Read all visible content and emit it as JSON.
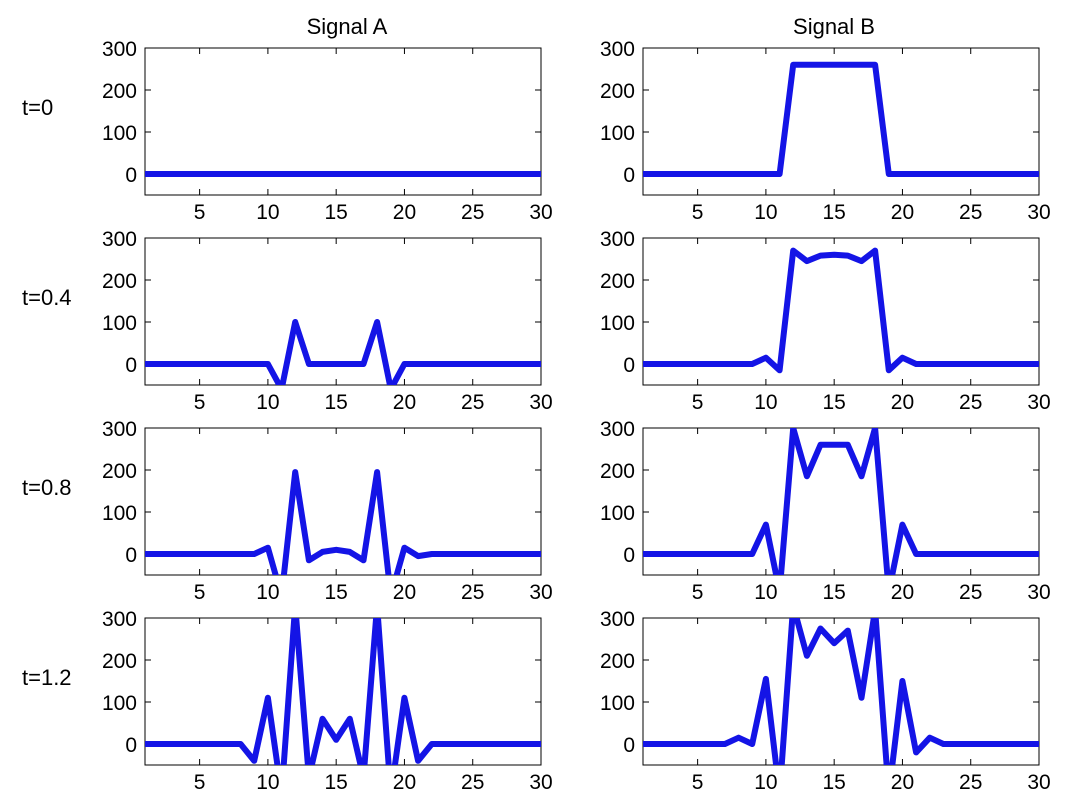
{
  "columns": [
    "Signal A",
    "Signal B"
  ],
  "rows": [
    "t=0",
    "t=0.4",
    "t=0.8",
    "t=1.2"
  ],
  "style": {
    "line_color": "#1414e6"
  },
  "chart_data": [
    {
      "type": "line",
      "row": "t=0",
      "column": "Signal A",
      "xlim": [
        1,
        30
      ],
      "ylim": [
        -50,
        300
      ],
      "xticks": [
        5,
        10,
        15,
        20,
        25,
        30
      ],
      "yticks": [
        0,
        100,
        200,
        300
      ],
      "x": [
        1,
        2,
        3,
        4,
        5,
        6,
        7,
        8,
        9,
        10,
        11,
        12,
        13,
        14,
        15,
        16,
        17,
        18,
        19,
        20,
        21,
        22,
        23,
        24,
        25,
        26,
        27,
        28,
        29,
        30
      ],
      "y": [
        0,
        0,
        0,
        0,
        0,
        0,
        0,
        0,
        0,
        0,
        0,
        0,
        0,
        0,
        0,
        0,
        0,
        0,
        0,
        0,
        0,
        0,
        0,
        0,
        0,
        0,
        0,
        0,
        0,
        0
      ]
    },
    {
      "type": "line",
      "row": "t=0",
      "column": "Signal B",
      "xlim": [
        1,
        30
      ],
      "ylim": [
        -50,
        300
      ],
      "xticks": [
        5,
        10,
        15,
        20,
        25,
        30
      ],
      "yticks": [
        0,
        100,
        200,
        300
      ],
      "x": [
        1,
        2,
        3,
        4,
        5,
        6,
        7,
        8,
        9,
        10,
        11,
        12,
        13,
        14,
        15,
        16,
        17,
        18,
        19,
        20,
        21,
        22,
        23,
        24,
        25,
        26,
        27,
        28,
        29,
        30
      ],
      "y": [
        0,
        0,
        0,
        0,
        0,
        0,
        0,
        0,
        0,
        0,
        0,
        260,
        260,
        260,
        260,
        260,
        260,
        260,
        0,
        0,
        0,
        0,
        0,
        0,
        0,
        0,
        0,
        0,
        0,
        0
      ]
    },
    {
      "type": "line",
      "row": "t=0.4",
      "column": "Signal A",
      "xlim": [
        1,
        30
      ],
      "ylim": [
        -50,
        300
      ],
      "xticks": [
        5,
        10,
        15,
        20,
        25,
        30
      ],
      "yticks": [
        0,
        100,
        200,
        300
      ],
      "x": [
        1,
        2,
        3,
        4,
        5,
        6,
        7,
        8,
        9,
        10,
        11,
        12,
        13,
        14,
        15,
        16,
        17,
        18,
        19,
        20,
        21,
        22,
        23,
        24,
        25,
        26,
        27,
        28,
        29,
        30
      ],
      "y": [
        0,
        0,
        0,
        0,
        0,
        0,
        0,
        0,
        0,
        0,
        -60,
        100,
        0,
        0,
        0,
        0,
        0,
        100,
        -60,
        0,
        0,
        0,
        0,
        0,
        0,
        0,
        0,
        0,
        0,
        0
      ]
    },
    {
      "type": "line",
      "row": "t=0.4",
      "column": "Signal B",
      "xlim": [
        1,
        30
      ],
      "ylim": [
        -50,
        300
      ],
      "xticks": [
        5,
        10,
        15,
        20,
        25,
        30
      ],
      "yticks": [
        0,
        100,
        200,
        300
      ],
      "x": [
        1,
        2,
        3,
        4,
        5,
        6,
        7,
        8,
        9,
        10,
        11,
        12,
        13,
        14,
        15,
        16,
        17,
        18,
        19,
        20,
        21,
        22,
        23,
        24,
        25,
        26,
        27,
        28,
        29,
        30
      ],
      "y": [
        0,
        0,
        0,
        0,
        0,
        0,
        0,
        0,
        0,
        15,
        -15,
        270,
        245,
        258,
        260,
        258,
        245,
        270,
        -15,
        15,
        0,
        0,
        0,
        0,
        0,
        0,
        0,
        0,
        0,
        0
      ]
    },
    {
      "type": "line",
      "row": "t=0.8",
      "column": "Signal A",
      "xlim": [
        1,
        30
      ],
      "ylim": [
        -50,
        300
      ],
      "xticks": [
        5,
        10,
        15,
        20,
        25,
        30
      ],
      "yticks": [
        0,
        100,
        200,
        300
      ],
      "x": [
        1,
        2,
        3,
        4,
        5,
        6,
        7,
        8,
        9,
        10,
        11,
        12,
        13,
        14,
        15,
        16,
        17,
        18,
        19,
        20,
        21,
        22,
        23,
        24,
        25,
        26,
        27,
        28,
        29,
        30
      ],
      "y": [
        0,
        0,
        0,
        0,
        0,
        0,
        0,
        0,
        0,
        15,
        -100,
        195,
        -15,
        5,
        10,
        5,
        -15,
        195,
        -100,
        15,
        -5,
        0,
        0,
        0,
        0,
        0,
        0,
        0,
        0,
        0
      ]
    },
    {
      "type": "line",
      "row": "t=0.8",
      "column": "Signal B",
      "xlim": [
        1,
        30
      ],
      "ylim": [
        -50,
        300
      ],
      "xticks": [
        5,
        10,
        15,
        20,
        25,
        30
      ],
      "yticks": [
        0,
        100,
        200,
        300
      ],
      "x": [
        1,
        2,
        3,
        4,
        5,
        6,
        7,
        8,
        9,
        10,
        11,
        12,
        13,
        14,
        15,
        16,
        17,
        18,
        19,
        20,
        21,
        22,
        23,
        24,
        25,
        26,
        27,
        28,
        29,
        30
      ],
      "y": [
        0,
        0,
        0,
        0,
        0,
        0,
        0,
        0,
        0,
        70,
        -90,
        300,
        185,
        260,
        260,
        260,
        185,
        300,
        -90,
        70,
        0,
        0,
        0,
        0,
        0,
        0,
        0,
        0,
        0,
        0
      ]
    },
    {
      "type": "line",
      "row": "t=1.2",
      "column": "Signal A",
      "xlim": [
        1,
        30
      ],
      "ylim": [
        -50,
        300
      ],
      "xticks": [
        5,
        10,
        15,
        20,
        25,
        30
      ],
      "yticks": [
        0,
        100,
        200,
        300
      ],
      "x": [
        1,
        2,
        3,
        4,
        5,
        6,
        7,
        8,
        9,
        10,
        11,
        12,
        13,
        14,
        15,
        16,
        17,
        18,
        19,
        20,
        21,
        22,
        23,
        24,
        25,
        26,
        27,
        28,
        29,
        30
      ],
      "y": [
        0,
        0,
        0,
        0,
        0,
        0,
        0,
        0,
        -40,
        110,
        -120,
        330,
        -80,
        60,
        10,
        60,
        -80,
        330,
        -120,
        110,
        -40,
        0,
        0,
        0,
        0,
        0,
        0,
        0,
        0,
        0
      ]
    },
    {
      "type": "line",
      "row": "t=1.2",
      "column": "Signal B",
      "xlim": [
        1,
        30
      ],
      "ylim": [
        -50,
        300
      ],
      "xticks": [
        5,
        10,
        15,
        20,
        25,
        30
      ],
      "yticks": [
        0,
        100,
        200,
        300
      ],
      "x": [
        1,
        2,
        3,
        4,
        5,
        6,
        7,
        8,
        9,
        10,
        11,
        12,
        13,
        14,
        15,
        16,
        17,
        18,
        19,
        20,
        21,
        22,
        23,
        24,
        25,
        26,
        27,
        28,
        29,
        30
      ],
      "y": [
        0,
        0,
        0,
        0,
        0,
        0,
        0,
        15,
        0,
        155,
        -120,
        330,
        210,
        275,
        240,
        270,
        110,
        320,
        -120,
        150,
        -20,
        15,
        0,
        0,
        0,
        0,
        0,
        0,
        0,
        0
      ]
    }
  ]
}
